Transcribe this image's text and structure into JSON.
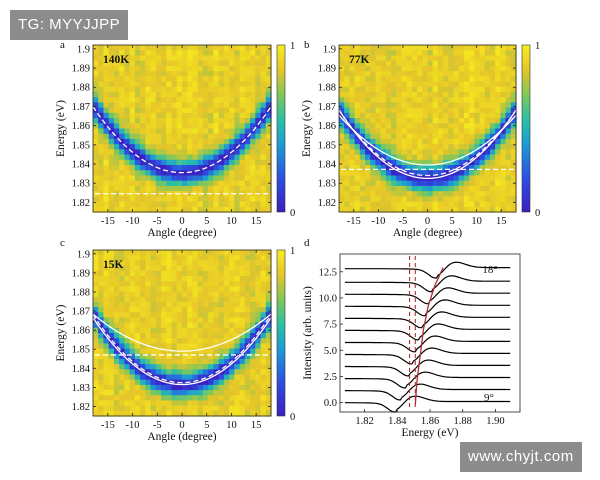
{
  "watermarks": {
    "top": "TG: MYYJJPP",
    "bottom": "www.chyjt.com"
  },
  "chart_data": [
    {
      "panel": "a",
      "type": "heatmap",
      "temperature": "140K",
      "xlabel": "Angle (degree)",
      "ylabel": "Energy (eV)",
      "xlim": [
        -18,
        18
      ],
      "ylim": [
        1.815,
        1.902
      ],
      "xticks": [
        -15,
        -10,
        -5,
        0,
        5,
        10,
        15
      ],
      "yticks": [
        1.82,
        1.83,
        1.84,
        1.85,
        1.86,
        1.87,
        1.88,
        1.89,
        1.9
      ],
      "colorbar": {
        "min": "0",
        "max": "1"
      },
      "band_center": 1.835,
      "band_curvature": 0.00011,
      "curves": [
        {
          "style": "white-dashed",
          "center": 1.8355,
          "curvature": 0.000106
        },
        {
          "style": "white-dashed-flat",
          "energy": 1.8245
        }
      ]
    },
    {
      "panel": "b",
      "type": "heatmap",
      "temperature": "77K",
      "xlabel": "Angle (degree)",
      "ylabel": "Energy (eV)",
      "xlim": [
        -18,
        18
      ],
      "ylim": [
        1.815,
        1.902
      ],
      "xticks": [
        -15,
        -10,
        -5,
        0,
        5,
        10,
        15
      ],
      "yticks": [
        1.82,
        1.83,
        1.84,
        1.85,
        1.86,
        1.87,
        1.88,
        1.89,
        1.9
      ],
      "colorbar": {
        "min": "0",
        "max": "1"
      },
      "band_center": 1.832,
      "band_curvature": 0.00011,
      "curves": [
        {
          "style": "white-dashed",
          "center": 1.834,
          "curvature": 0.000105
        },
        {
          "style": "white-solid",
          "center": 1.8395,
          "curvature": 8e-05
        },
        {
          "style": "white-solid",
          "center": 1.8325,
          "curvature": 0.00011
        },
        {
          "style": "white-dashed-flat",
          "energy": 1.8372
        }
      ]
    },
    {
      "panel": "c",
      "type": "heatmap",
      "temperature": "15K",
      "xlabel": "Angle (degree)",
      "ylabel": "Energy (eV)",
      "xlim": [
        -18,
        18
      ],
      "ylim": [
        1.815,
        1.902
      ],
      "xticks": [
        -15,
        -10,
        -5,
        0,
        5,
        10,
        15
      ],
      "yticks": [
        1.82,
        1.83,
        1.84,
        1.85,
        1.86,
        1.87,
        1.88,
        1.89,
        1.9
      ],
      "colorbar": {
        "min": "0",
        "max": "1"
      },
      "band_center": 1.831,
      "band_curvature": 0.000115,
      "curves": [
        {
          "style": "white-dashed",
          "center": 1.8325,
          "curvature": 0.00011
        },
        {
          "style": "white-solid",
          "center": 1.849,
          "curvature": 6e-05
        },
        {
          "style": "white-solid",
          "center": 1.8315,
          "curvature": 0.000108
        },
        {
          "style": "white-dashed-flat",
          "energy": 1.847
        }
      ]
    },
    {
      "panel": "d",
      "type": "line",
      "xlabel": "Energy (eV)",
      "ylabel": "Intensity (arb. units)",
      "xlim": [
        1.805,
        1.915
      ],
      "ylim": [
        -0.9,
        14.2
      ],
      "xticks": [
        "1.82",
        "1.84",
        "1.86",
        "1.88",
        "1.90"
      ],
      "yticks": [
        "0.0",
        "2.5",
        "5.0",
        "7.5",
        "10.0",
        "12.5"
      ],
      "annotations": {
        "top": "18°",
        "bottom": "9°"
      },
      "series_count": 12,
      "offsets": [
        0,
        1.15,
        2.3,
        3.45,
        4.6,
        5.75,
        6.9,
        8.05,
        9.2,
        10.35,
        11.5,
        12.65
      ],
      "dip_energies": [
        1.839,
        1.842,
        1.845,
        1.847,
        1.849,
        1.851,
        1.853,
        1.855,
        1.857,
        1.859,
        1.861,
        1.864
      ],
      "red_dashed_lines": [
        1.8475,
        1.851
      ],
      "red_solid_curve": {
        "x": [
          1.851,
          1.852,
          1.854,
          1.856,
          1.859,
          1.863,
          1.868
        ],
        "y": [
          -0.2,
          2.0,
          4.5,
          7.0,
          9.3,
          11.2,
          12.9
        ]
      }
    }
  ]
}
